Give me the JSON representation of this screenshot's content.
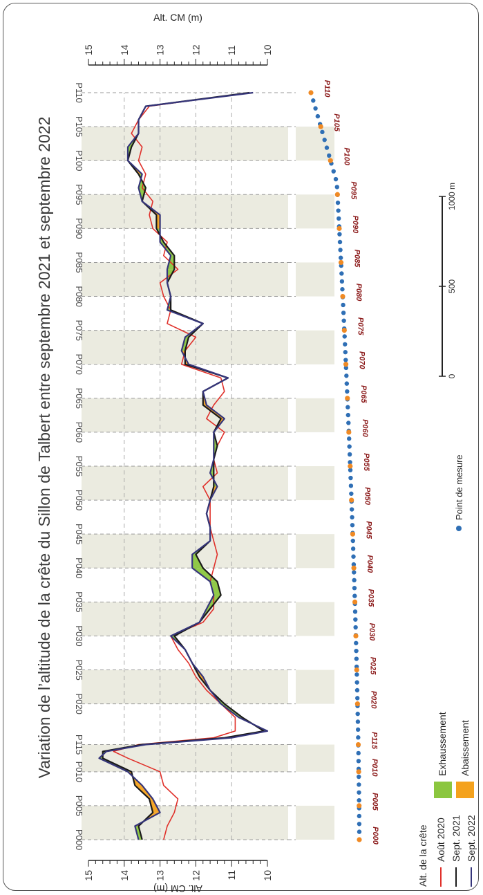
{
  "chart_data": {
    "type": "line",
    "title": "Variation de l’altitude de la crête du Sillon de Talbert entre septembre 2021 et septembre 2022",
    "xlabel": "",
    "ylabel": "Alt. CM (m)",
    "ylim": [
      10,
      15
    ],
    "yticks": [
      "15",
      "14",
      "13",
      "12",
      "11",
      "10"
    ],
    "grid": true,
    "categories": [
      "P000",
      "P005",
      "P010",
      "P115",
      "P020",
      "P025",
      "P030",
      "P035",
      "P040",
      "P045",
      "P050",
      "P055",
      "P060",
      "P065",
      "P070",
      "P075",
      "P080",
      "P085",
      "P090",
      "P095",
      "P100",
      "P105",
      "P110"
    ],
    "category_x": [
      0,
      5,
      10,
      14,
      20,
      25,
      30,
      35,
      40,
      45,
      50,
      55,
      60,
      65,
      70,
      75,
      80,
      85,
      90,
      95,
      100,
      105,
      110
    ],
    "series": [
      {
        "name": "Août 2020",
        "color": "#e0302a",
        "x": [
          0,
          2,
          4,
          6,
          8,
          10,
          12,
          13,
          14,
          15,
          16,
          18,
          20,
          22,
          24,
          26,
          28,
          30,
          32,
          34,
          36,
          38,
          40,
          42,
          44,
          46,
          48,
          50,
          52,
          54,
          56,
          58,
          60,
          62,
          64,
          66,
          68,
          70,
          72,
          74,
          76,
          78,
          80,
          82,
          84,
          86,
          88,
          90,
          92,
          94,
          96,
          98,
          100,
          102,
          104,
          106,
          108,
          110
        ],
        "y": [
          12.9,
          12.8,
          12.6,
          12.5,
          12.9,
          13.0,
          13.9,
          14.3,
          13.6,
          11.5,
          10.9,
          10.9,
          11.3,
          11.7,
          12.0,
          12.2,
          12.5,
          12.7,
          11.8,
          11.5,
          11.5,
          11.6,
          11.5,
          11.4,
          11.5,
          11.6,
          11.6,
          11.6,
          11.8,
          11.4,
          11.5,
          11.4,
          11.2,
          11.7,
          11.5,
          11.2,
          11.3,
          12.4,
          12.3,
          12.0,
          12.8,
          12.7,
          12.9,
          13.0,
          12.5,
          12.9,
          12.8,
          13.2,
          13.3,
          13.2,
          13.5,
          13.4,
          13.6,
          13.5,
          13.8,
          13.6,
          13.3,
          10.5
        ]
      },
      {
        "name": "Sept. 2021",
        "color": "#1a1a1a",
        "x": [
          0,
          2,
          4,
          6,
          8,
          10,
          12,
          13,
          14,
          15,
          16,
          18,
          20,
          22,
          24,
          26,
          28,
          30,
          32,
          34,
          36,
          38,
          40,
          42,
          44,
          46,
          48,
          50,
          52,
          54,
          56,
          58,
          60,
          62,
          64,
          66,
          68,
          70,
          72,
          74,
          76,
          78,
          80,
          82,
          84,
          86,
          88,
          90,
          92,
          94,
          96,
          98,
          100,
          102,
          104,
          106,
          108,
          110
        ],
        "y": [
          13.5,
          13.6,
          13.2,
          13.3,
          13.7,
          13.8,
          14.6,
          14.6,
          13.5,
          11.2,
          10.1,
          10.7,
          11.2,
          11.6,
          11.9,
          12.1,
          12.3,
          12.6,
          11.9,
          11.6,
          11.3,
          11.4,
          11.8,
          12.0,
          11.6,
          11.6,
          11.7,
          11.6,
          11.5,
          11.5,
          11.5,
          11.4,
          11.5,
          11.3,
          11.8,
          11.8,
          11.1,
          12.3,
          12.3,
          12.2,
          11.8,
          12.7,
          12.7,
          12.8,
          12.6,
          12.6,
          12.9,
          13.1,
          13.1,
          13.5,
          13.4,
          13.6,
          13.9,
          13.8,
          13.6,
          13.6,
          13.4,
          10.5
        ]
      },
      {
        "name": "Sept. 2022",
        "color": "#35357a",
        "x": [
          0,
          2,
          4,
          6,
          8,
          10,
          12,
          13,
          14,
          15,
          16,
          18,
          20,
          22,
          24,
          26,
          28,
          30,
          32,
          34,
          36,
          38,
          40,
          42,
          44,
          46,
          48,
          50,
          52,
          54,
          56,
          58,
          60,
          62,
          64,
          66,
          68,
          70,
          72,
          74,
          76,
          78,
          80,
          82,
          84,
          86,
          88,
          90,
          92,
          94,
          96,
          98,
          100,
          102,
          104,
          106,
          108,
          110
        ],
        "y": [
          13.6,
          13.7,
          13.0,
          13.2,
          13.5,
          13.9,
          14.7,
          14.5,
          13.4,
          11.0,
          10.0,
          10.8,
          11.3,
          11.6,
          11.8,
          12.1,
          12.3,
          12.7,
          11.9,
          11.7,
          11.5,
          11.6,
          12.1,
          12.1,
          11.6,
          11.6,
          11.7,
          11.6,
          11.4,
          11.6,
          11.5,
          11.5,
          11.5,
          11.2,
          11.7,
          11.8,
          11.1,
          12.2,
          12.4,
          12.3,
          11.8,
          12.8,
          12.7,
          12.8,
          12.8,
          12.7,
          13.0,
          13.0,
          13.0,
          13.5,
          13.6,
          13.5,
          13.9,
          13.9,
          13.6,
          13.6,
          13.4,
          10.4
        ]
      }
    ]
  },
  "legend": {
    "title": "Alt. de la crête",
    "items": [
      "Août 2020",
      "Sept. 2021",
      "Sept. 2022"
    ],
    "fill_items": [
      {
        "label": "Exhaussement",
        "color": "#8bc63f"
      },
      {
        "label": "Abaissement",
        "color": "#f4a21d"
      }
    ],
    "point_label": "Point de mesure"
  },
  "map": {
    "labels": [
      "P000",
      "P005",
      "P010",
      "P115",
      "P020",
      "P025",
      "P030",
      "P035",
      "P040",
      "P045",
      "P050",
      "P055",
      "P060",
      "P065",
      "P070",
      "P075",
      "P080",
      "P085",
      "P090",
      "P095",
      "P100",
      "P105",
      "P110"
    ],
    "point_color": "#2f6fb5",
    "marker_color": "#f08a24"
  },
  "scalebar": {
    "ticks": [
      "0",
      "500",
      "1000 m"
    ]
  },
  "band_color": "#ebebe0"
}
